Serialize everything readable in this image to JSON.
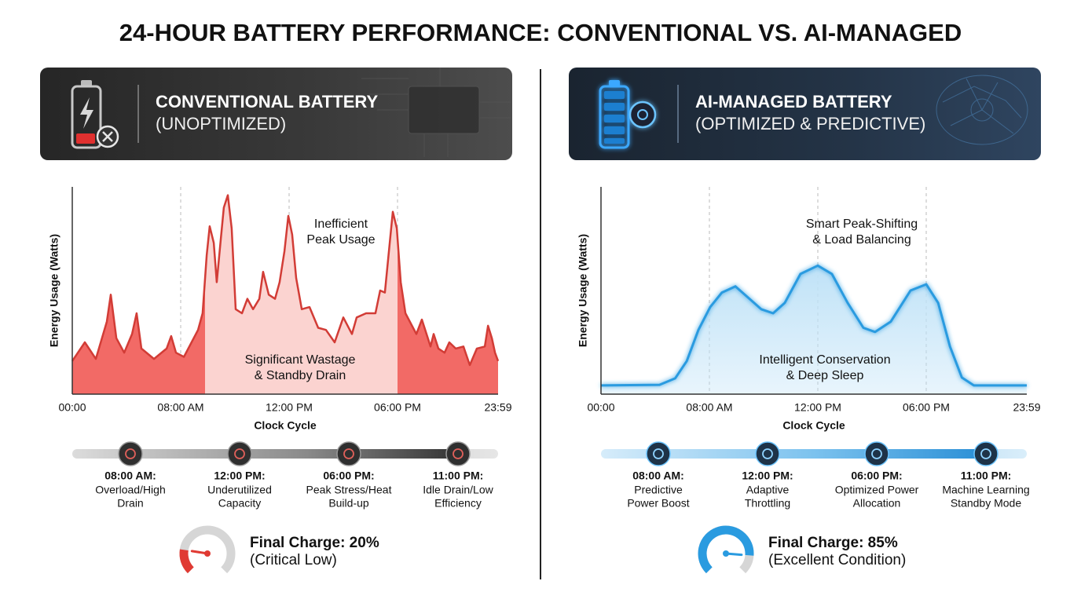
{
  "title": "24-HOUR BATTERY PERFORMANCE: CONVENTIONAL VS. AI-MANAGED",
  "panels": [
    {
      "header": {
        "title": "CONVENTIONAL BATTERY",
        "subtitle": "(UNOPTIMIZED)"
      },
      "milestones": [
        {
          "time": "08:00 AM:",
          "lines": [
            "Overload/High",
            "Drain"
          ]
        },
        {
          "time": "12:00 PM:",
          "lines": [
            "Underutilized",
            "Capacity"
          ]
        },
        {
          "time": "06:00 PM:",
          "lines": [
            "Peak Stress/Heat",
            "Build-up"
          ]
        },
        {
          "time": "11:00 PM:",
          "lines": [
            "Idle Drain/Low",
            "Efficiency"
          ]
        }
      ],
      "final_charge": {
        "label": "Final Charge: 20%",
        "value": 20,
        "status": "(Critical Low)",
        "color": "#e03a33"
      }
    },
    {
      "header": {
        "title": "AI-MANAGED BATTERY",
        "subtitle": "(OPTIMIZED & PREDICTIVE)"
      },
      "milestones": [
        {
          "time": "08:00 AM:",
          "lines": [
            "Predictive",
            "Power Boost"
          ]
        },
        {
          "time": "12:00 PM:",
          "lines": [
            "Adaptive",
            "Throttling"
          ]
        },
        {
          "time": "06:00 PM:",
          "lines": [
            "Optimized Power",
            "Allocation"
          ]
        },
        {
          "time": "11:00 PM:",
          "lines": [
            "Machine Learning",
            "Standby Mode"
          ]
        }
      ],
      "final_charge": {
        "label": "Final Charge: 85%",
        "value": 85,
        "status": "(Excellent Condition)",
        "color": "#2a9be0"
      }
    }
  ],
  "chart_data": [
    {
      "type": "area",
      "xlabel": "Clock Cycle",
      "ylabel": "Energy Usage (Watts)",
      "x": [
        0,
        0.93,
        1.74,
        2.55,
        2.84,
        3.25,
        3.83,
        4.41,
        4.75,
        5.1,
        6.03,
        6.96,
        7.3,
        7.65,
        8.12,
        8.64,
        8.81,
        8.96,
        9.07,
        9.22,
        9.33,
        9.48,
        9.59,
        9.74,
        9.88,
        10.03,
        10.26,
        10.46,
        10.67,
        10.9,
        11.04,
        11.25,
        11.48,
        11.65,
        11.83,
        11.97,
        12.17,
        12.39,
        12.7,
        13.13,
        13.61,
        14.04,
        14.52,
        15.0,
        15.48,
        15.74,
        16.26,
        16.78,
        17.04,
        17.3,
        17.57,
        17.74,
        17.96,
        18.19,
        18.47,
        19.12,
        19.45,
        19.96,
        20.15,
        20.43,
        20.8,
        21.08,
        21.46,
        21.92,
        22.3,
        22.72,
        23.19,
        23.38,
        23.61,
        23.8,
        23.98
      ],
      "values": [
        16,
        25,
        17,
        35,
        48,
        27,
        20,
        29,
        39,
        22,
        17,
        22,
        28,
        20,
        18,
        31,
        39,
        67,
        81,
        73,
        54,
        75,
        90,
        96,
        80,
        41,
        39,
        46,
        41,
        46,
        59,
        48,
        46,
        54,
        69,
        86,
        77,
        56,
        41,
        42,
        32,
        31,
        25,
        37,
        29,
        37,
        39,
        39,
        50,
        49,
        73,
        88,
        80,
        54,
        39,
        29,
        36,
        23,
        29,
        22,
        20,
        25,
        22,
        23,
        14,
        22,
        23,
        33,
        27,
        20,
        16
      ],
      "color": "#d23c36",
      "fill_color": "#f26a66",
      "highlight_color": "#fbd3d0",
      "highlight_range": [
        8.9,
        18
      ],
      "xlim": [
        0,
        23.98
      ],
      "xticks": [
        {
          "value": 0,
          "label": "00:00"
        },
        {
          "value": 8,
          "label": "08:00 AM"
        },
        {
          "value": 12,
          "label": "12:00 PM"
        },
        {
          "value": 18,
          "label": "06:00 PM"
        },
        {
          "value": 23.98,
          "label": "23:59"
        }
      ],
      "ylim": [
        0,
        100
      ],
      "grid": true,
      "annotations": [
        {
          "lines": [
            "Inefficient",
            "Peak Usage"
          ]
        },
        {
          "lines": [
            "Significant Wastage",
            "& Standby Drain"
          ]
        }
      ]
    },
    {
      "type": "area",
      "xlabel": "Clock Cycle",
      "ylabel": "Energy Usage (Watts)",
      "x": [
        0,
        4.32,
        5.47,
        6.33,
        7.19,
        8.03,
        8.46,
        8.96,
        9.48,
        9.91,
        10.35,
        10.78,
        11.36,
        12,
        12.78,
        13.65,
        14.52,
        15.17,
        16.04,
        17.13,
        18,
        18.71,
        19.41,
        20.12,
        20.83,
        23.98
      ],
      "values": [
        4.2,
        4.5,
        7.6,
        16,
        31,
        42,
        49,
        52,
        46,
        41,
        39,
        44,
        58,
        62,
        58,
        44,
        32,
        30,
        35,
        50,
        53,
        44,
        23,
        8,
        4.2,
        4.2
      ],
      "color": "#2a9be0",
      "fill_color": "#bfe2f7",
      "xlim": [
        0,
        23.98
      ],
      "xticks": [
        {
          "value": 0,
          "label": "00:00"
        },
        {
          "value": 8,
          "label": "08:00 AM"
        },
        {
          "value": 12,
          "label": "12:00 PM"
        },
        {
          "value": 18,
          "label": "06:00 PM"
        },
        {
          "value": 23.98,
          "label": "23:59"
        }
      ],
      "ylim": [
        0,
        100
      ],
      "grid": true,
      "annotations": [
        {
          "lines": [
            "Smart Peak-Shifting",
            "& Load Balancing"
          ]
        },
        {
          "lines": [
            "Intelligent Conservation",
            "& Deep Sleep"
          ]
        }
      ]
    }
  ]
}
